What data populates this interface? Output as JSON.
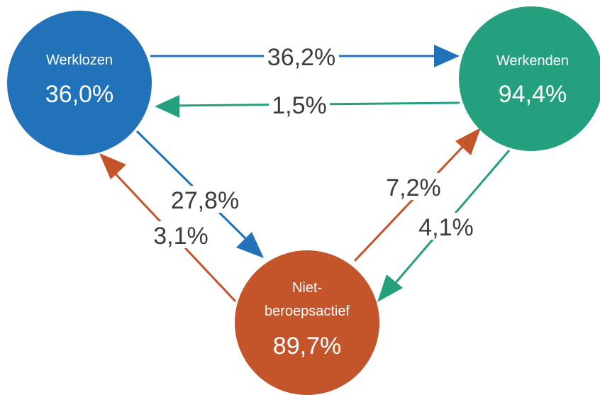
{
  "colors": {
    "werklozen": "#2272b9",
    "werkenden": "#25a07f",
    "niet_beroepsactief": "#c4542a",
    "label_text": "#3c3c3c"
  },
  "nodes": {
    "werklozen": {
      "name": "Werklozen",
      "value": "36,0%"
    },
    "werkenden": {
      "name": "Werkenden",
      "value": "94,4%"
    },
    "niet_beroepsactief": {
      "name_line1": "Niet-",
      "name_line2": "beroepsactief",
      "value": "89,7%"
    }
  },
  "flows": {
    "werklozen_to_werkenden": "36,2%",
    "werkenden_to_werklozen": "1,5%",
    "werklozen_to_niet": "27,8%",
    "niet_to_werklozen": "3,1%",
    "niet_to_werkenden": "7,2%",
    "werkenden_to_niet": "4,1%"
  }
}
